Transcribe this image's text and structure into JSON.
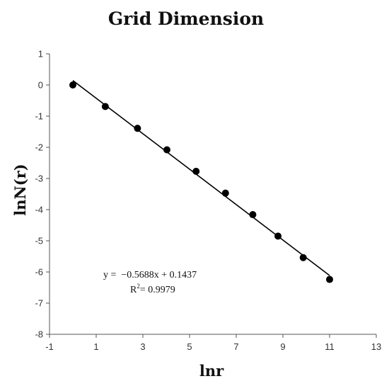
{
  "chart_data": {
    "type": "scatter",
    "title": "Grid Dimension",
    "xlabel": "lnr",
    "ylabel": "lnN(r)",
    "xlim": [
      -1,
      13
    ],
    "ylim": [
      -8,
      1
    ],
    "xticks": [
      -1,
      1,
      3,
      5,
      7,
      9,
      11,
      13
    ],
    "yticks": [
      1,
      0,
      -1,
      -2,
      -3,
      -4,
      -5,
      -6,
      -7,
      -8
    ],
    "grid": false,
    "legend": "none",
    "marker_color": "#000000",
    "line_color": "#000000",
    "points": [
      {
        "x": 0.0,
        "y": 0.0
      },
      {
        "x": 1.39,
        "y": -0.69
      },
      {
        "x": 2.77,
        "y": -1.39
      },
      {
        "x": 4.03,
        "y": -2.08
      },
      {
        "x": 5.28,
        "y": -2.77
      },
      {
        "x": 6.54,
        "y": -3.47
      },
      {
        "x": 7.71,
        "y": -4.16
      },
      {
        "x": 8.79,
        "y": -4.85
      },
      {
        "x": 9.87,
        "y": -5.54
      },
      {
        "x": 11.0,
        "y": -6.24
      }
    ],
    "trendline": {
      "slope": -0.5688,
      "intercept": 0.1437,
      "x_range": [
        0,
        11
      ]
    },
    "annotations": {
      "equation": "y =  −0.5688x + 0.1437",
      "r2_prefix": "R",
      "r2_sup": "2",
      "r2_suffix": "= 0.9979"
    }
  }
}
